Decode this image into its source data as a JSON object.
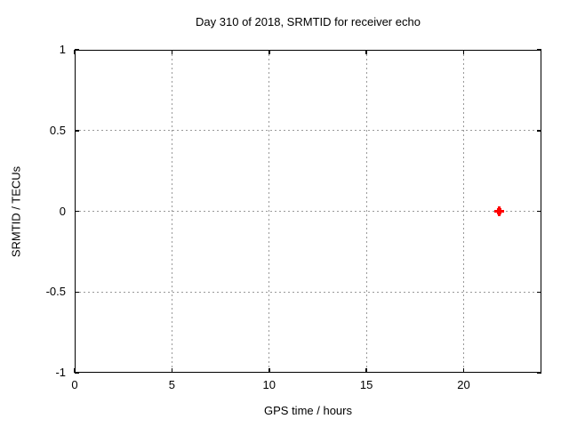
{
  "chart_data": {
    "type": "scatter",
    "title": "Day 310 of 2018, SRMTID for receiver echo",
    "xlabel": "GPS time / hours",
    "ylabel": "SRMTID / TECUs",
    "xlim": [
      0,
      24
    ],
    "ylim": [
      -1,
      1
    ],
    "x_ticks": [
      0,
      5,
      10,
      15,
      20
    ],
    "y_ticks": [
      -1,
      -0.5,
      0,
      0.5,
      1
    ],
    "grid": true,
    "grid_style": "dotted",
    "tick_style": "inward-mirrored",
    "legend": "none",
    "series": [
      {
        "name": "SRMTID",
        "marker": "plus",
        "color": "#ff0000",
        "points": [
          {
            "x": 21.85,
            "y": 0.0
          }
        ]
      }
    ],
    "colors": {
      "background": "#ffffff",
      "axis": "#000000",
      "grid": "#999999",
      "text": "#000000",
      "point": "#ff0000"
    }
  }
}
